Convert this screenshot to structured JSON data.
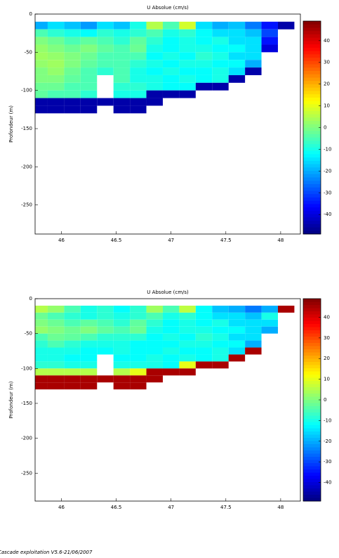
{
  "chart_data": [
    {
      "type": "heatmap",
      "title": "U Absolue (cm/s)",
      "ylabel": "Profondeur (m)",
      "colormap": "jet",
      "x": [
        45.8,
        45.95,
        46.1,
        46.25,
        46.4,
        46.55,
        46.7,
        46.85,
        47.0,
        47.15,
        47.3,
        47.45,
        47.6,
        47.75,
        47.9,
        48.05
      ],
      "y": [
        -15,
        -25,
        -35,
        -45,
        -55,
        -65,
        -75,
        -85,
        -95,
        -105,
        -115,
        -125
      ],
      "values": [
        [
          -20,
          -15,
          -18,
          -22,
          -15,
          -18,
          -10,
          5,
          -5,
          8,
          -15,
          -20,
          -18,
          -25,
          -35,
          -45
        ],
        [
          -5,
          -8,
          -10,
          -12,
          -8,
          -10,
          -8,
          -5,
          -10,
          -8,
          -12,
          -15,
          -15,
          -18,
          -30,
          null
        ],
        [
          0,
          -2,
          -5,
          -3,
          -5,
          -8,
          -3,
          -8,
          -12,
          -10,
          -12,
          -10,
          -15,
          -15,
          -35,
          null
        ],
        [
          2,
          0,
          -2,
          0,
          -3,
          -5,
          -2,
          -10,
          -12,
          -10,
          -10,
          -12,
          -12,
          -15,
          -40,
          null
        ],
        [
          3,
          2,
          0,
          -2,
          -5,
          -5,
          -5,
          -12,
          -10,
          -12,
          -8,
          -10,
          -15,
          -15,
          null,
          null
        ],
        [
          2,
          3,
          0,
          -3,
          -5,
          -5,
          -8,
          -10,
          -12,
          -10,
          -10,
          -12,
          -12,
          -20,
          null,
          null
        ],
        [
          0,
          2,
          -2,
          -5,
          -8,
          -5,
          -10,
          -12,
          -10,
          -12,
          -12,
          -10,
          -15,
          -45,
          null,
          null
        ],
        [
          0,
          0,
          -3,
          -5,
          null,
          -5,
          -10,
          -10,
          -12,
          -10,
          -12,
          -10,
          -45,
          null,
          null,
          null
        ],
        [
          -2,
          -2,
          -5,
          -5,
          null,
          -8,
          -8,
          -10,
          -12,
          -12,
          -45,
          -45,
          null,
          null,
          null,
          null
        ],
        [
          -3,
          -5,
          -5,
          -8,
          null,
          -10,
          -10,
          -45,
          -45,
          -45,
          null,
          null,
          null,
          null,
          null,
          null
        ],
        [
          -45,
          -45,
          -45,
          -45,
          -45,
          -45,
          -45,
          -45,
          null,
          null,
          null,
          null,
          null,
          null,
          null,
          null
        ],
        [
          -45,
          -45,
          -45,
          -45,
          null,
          -45,
          -45,
          null,
          null,
          null,
          null,
          null,
          null,
          null,
          null,
          null
        ]
      ],
      "xlim": [
        45.76,
        48.18
      ],
      "ylim": [
        -288,
        0
      ],
      "xticks": [
        46,
        46.5,
        47,
        47.5,
        48
      ],
      "yticks": [
        0,
        -50,
        -100,
        -150,
        -200,
        -250
      ],
      "clim": [
        -49,
        49
      ],
      "cticks": [
        40,
        30,
        20,
        10,
        0,
        -10,
        -20,
        -30,
        -40
      ]
    },
    {
      "type": "heatmap",
      "title": "U Absolue (cm/s)",
      "ylabel": "Profondeur (m)",
      "colormap": "jet",
      "x": [
        45.8,
        45.95,
        46.1,
        46.25,
        46.4,
        46.55,
        46.7,
        46.85,
        47.0,
        47.15,
        47.3,
        47.45,
        47.6,
        47.75,
        47.9,
        48.05
      ],
      "y": [
        -15,
        -25,
        -35,
        -45,
        -55,
        -65,
        -75,
        -85,
        -95,
        -105,
        -115,
        -125
      ],
      "values": [
        [
          5,
          2,
          -5,
          -10,
          -8,
          -12,
          -8,
          3,
          -5,
          6,
          -12,
          -18,
          -20,
          -25,
          -20,
          45
        ],
        [
          -2,
          -5,
          -8,
          -10,
          -8,
          -10,
          -8,
          -5,
          -10,
          -8,
          -12,
          -15,
          -15,
          -18,
          -10,
          null
        ],
        [
          0,
          -2,
          -5,
          -3,
          -5,
          -8,
          -3,
          -8,
          -12,
          -10,
          -12,
          -10,
          -15,
          -15,
          -15,
          null
        ],
        [
          2,
          0,
          -2,
          0,
          -3,
          -5,
          -2,
          -10,
          -12,
          -10,
          -10,
          -12,
          -12,
          -15,
          -20,
          null
        ],
        [
          -5,
          -2,
          -3,
          -5,
          -8,
          -8,
          -8,
          -12,
          -10,
          -12,
          -8,
          -10,
          -15,
          -15,
          null,
          null
        ],
        [
          -8,
          -5,
          -8,
          -10,
          -10,
          -10,
          -12,
          -12,
          -12,
          -10,
          -10,
          -12,
          -12,
          -20,
          null,
          null
        ],
        [
          -10,
          -10,
          -10,
          -12,
          -12,
          -10,
          -12,
          -12,
          -10,
          -12,
          -12,
          -10,
          -15,
          45,
          null,
          null
        ],
        [
          -10,
          -10,
          -12,
          -12,
          null,
          -12,
          -12,
          -10,
          -12,
          -10,
          -12,
          -10,
          45,
          null,
          null,
          null
        ],
        [
          -8,
          -8,
          -10,
          -10,
          null,
          -10,
          -10,
          -10,
          -12,
          10,
          45,
          45,
          null,
          null,
          null,
          null
        ],
        [
          5,
          5,
          5,
          5,
          null,
          5,
          10,
          45,
          45,
          45,
          null,
          null,
          null,
          null,
          null,
          null
        ],
        [
          45,
          45,
          45,
          45,
          45,
          45,
          45,
          45,
          null,
          null,
          null,
          null,
          null,
          null,
          null,
          null
        ],
        [
          45,
          45,
          45,
          45,
          null,
          45,
          45,
          null,
          null,
          null,
          null,
          null,
          null,
          null,
          null,
          null
        ]
      ],
      "xlim": [
        45.76,
        48.18
      ],
      "ylim": [
        -290,
        0
      ],
      "xticks": [
        46,
        46.5,
        47,
        47.5,
        48
      ],
      "yticks": [
        0,
        -50,
        -100,
        -150,
        -200,
        -250
      ],
      "clim": [
        -49,
        49
      ],
      "cticks": [
        40,
        30,
        20,
        10,
        0,
        -10,
        -20,
        -30,
        -40
      ]
    }
  ],
  "footer": "Cascade exploitation V5.6-21/06/2007"
}
